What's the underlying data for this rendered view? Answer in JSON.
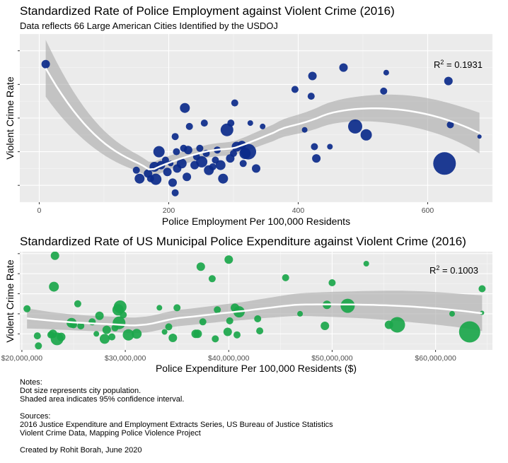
{
  "chart1": {
    "title": "Standardized Rate of Police Employment against Violent Crime (2016)",
    "subtitle": "Data reflects 66 Large American Cities Identified by the USDOJ",
    "xlabel": "Police Employment Per 100,000 Residents",
    "ylabel": "Violent Crime Rate",
    "r2_prefix": "R",
    "r2_exp": "2",
    "r2_value": " = 0.1931",
    "point_color": "#0b2a8a"
  },
  "chart2": {
    "title": "Standardized Rate of US Municipal Police Expenditure against Violent Crime (2016)",
    "xlabel": "Police Expenditure Per 100,000 Residents ($)",
    "ylabel": "Violent Crime Rate",
    "r2_prefix": "R",
    "r2_exp": "2",
    "r2_value": " = 0.1003",
    "point_color": "#1aa64a"
  },
  "notes": {
    "heading": "Notes:",
    "line1": "Dot size represents city population.",
    "line2": "Shaded area indicates 95% confidence interval.",
    "sources_heading": "Sources:",
    "source1": "2016 Justice Expenditure and Employment Extracts Series, US Bureau of Justice Statistics",
    "source2": "Violent Crime Data, Mapping Police Violence Project",
    "credit": "Created by Rohit Borah, June 2020"
  },
  "chart_data": [
    {
      "type": "scatter",
      "title": "Standardized Rate of Police Employment against Violent Crime (2016)",
      "subtitle": "Data reflects 66 Large American Cities Identified by the USDOJ",
      "xlabel": "Police Employment Per 100,000 Residents",
      "ylabel": "Violent Crime Rate",
      "xlim": [
        -30,
        700
      ],
      "ylim": [
        -2.0,
        3.0
      ],
      "xticks": [
        0,
        200,
        400,
        600
      ],
      "xtick_labels": [
        "0",
        "200",
        "400",
        "600"
      ],
      "yticks": [
        -1.5,
        -0.5,
        0.5,
        1.5,
        2.5
      ],
      "ytick_labels": [
        "",
        "",
        "",
        "",
        ""
      ],
      "grid": true,
      "annotation": "R2 = 0.1931",
      "points": [
        {
          "x": 10,
          "y": 2.1,
          "s": 6
        },
        {
          "x": 150,
          "y": -1.05,
          "s": 5
        },
        {
          "x": 155,
          "y": -1.3,
          "s": 7
        },
        {
          "x": 168,
          "y": -1.15,
          "s": 6
        },
        {
          "x": 172,
          "y": -1.3,
          "s": 5
        },
        {
          "x": 178,
          "y": -0.95,
          "s": 7
        },
        {
          "x": 180,
          "y": -1.32,
          "s": 8
        },
        {
          "x": 185,
          "y": -0.5,
          "s": 8
        },
        {
          "x": 188,
          "y": -0.9,
          "s": 6
        },
        {
          "x": 195,
          "y": -0.75,
          "s": 5
        },
        {
          "x": 198,
          "y": -1.1,
          "s": 6
        },
        {
          "x": 203,
          "y": -0.85,
          "s": 4
        },
        {
          "x": 206,
          "y": -1.42,
          "s": 6
        },
        {
          "x": 210,
          "y": -0.05,
          "s": 5
        },
        {
          "x": 210,
          "y": -1.72,
          "s": 5
        },
        {
          "x": 212,
          "y": -0.5,
          "s": 5
        },
        {
          "x": 213,
          "y": -1.0,
          "s": 6
        },
        {
          "x": 220,
          "y": -0.85,
          "s": 7
        },
        {
          "x": 223,
          "y": -0.4,
          "s": 5
        },
        {
          "x": 225,
          "y": 0.8,
          "s": 7
        },
        {
          "x": 228,
          "y": -1.25,
          "s": 6
        },
        {
          "x": 230,
          "y": -0.45,
          "s": 6
        },
        {
          "x": 232,
          "y": 0.25,
          "s": 5
        },
        {
          "x": 240,
          "y": -0.9,
          "s": 6
        },
        {
          "x": 243,
          "y": -0.65,
          "s": 5
        },
        {
          "x": 248,
          "y": -0.4,
          "s": 5
        },
        {
          "x": 251,
          "y": -0.8,
          "s": 8
        },
        {
          "x": 255,
          "y": 0.35,
          "s": 5
        },
        {
          "x": 258,
          "y": -0.55,
          "s": 5
        },
        {
          "x": 262,
          "y": -1.05,
          "s": 7
        },
        {
          "x": 268,
          "y": -0.95,
          "s": 5
        },
        {
          "x": 272,
          "y": -0.75,
          "s": 5
        },
        {
          "x": 275,
          "y": -0.45,
          "s": 5
        },
        {
          "x": 280,
          "y": -0.9,
          "s": 7
        },
        {
          "x": 284,
          "y": -1.3,
          "s": 7
        },
        {
          "x": 290,
          "y": 0.15,
          "s": 9
        },
        {
          "x": 295,
          "y": -0.7,
          "s": 6
        },
        {
          "x": 296,
          "y": 0.35,
          "s": 5
        },
        {
          "x": 300,
          "y": -0.55,
          "s": 5
        },
        {
          "x": 302,
          "y": 0.95,
          "s": 5
        },
        {
          "x": 305,
          "y": -0.35,
          "s": 7
        },
        {
          "x": 313,
          "y": -0.3,
          "s": 6
        },
        {
          "x": 315,
          "y": -0.85,
          "s": 5
        },
        {
          "x": 318,
          "y": -0.55,
          "s": 8
        },
        {
          "x": 323,
          "y": -0.5,
          "s": 11
        },
        {
          "x": 326,
          "y": 0.35,
          "s": 4
        },
        {
          "x": 335,
          "y": -1.0,
          "s": 6
        },
        {
          "x": 345,
          "y": 0.25,
          "s": 4
        },
        {
          "x": 395,
          "y": 1.35,
          "s": 5
        },
        {
          "x": 410,
          "y": 0.15,
          "s": 4
        },
        {
          "x": 420,
          "y": 1.15,
          "s": 5
        },
        {
          "x": 422,
          "y": 1.75,
          "s": 6
        },
        {
          "x": 425,
          "y": -0.35,
          "s": 5
        },
        {
          "x": 428,
          "y": -0.7,
          "s": 6
        },
        {
          "x": 449,
          "y": -0.35,
          "s": 4
        },
        {
          "x": 470,
          "y": 2.0,
          "s": 6
        },
        {
          "x": 488,
          "y": 0.25,
          "s": 10
        },
        {
          "x": 505,
          "y": 0.0,
          "s": 8
        },
        {
          "x": 532,
          "y": 1.3,
          "s": 5
        },
        {
          "x": 536,
          "y": 1.85,
          "s": 4
        },
        {
          "x": 626,
          "y": -0.85,
          "s": 16
        },
        {
          "x": 632,
          "y": 1.6,
          "s": 6
        },
        {
          "x": 635,
          "y": 0.3,
          "s": 5
        },
        {
          "x": 680,
          "y": -0.05,
          "s": 3
        }
      ]
    },
    {
      "type": "scatter",
      "title": "Standardized Rate of US Municipal Police Expenditure against Violent Crime (2016)",
      "xlabel": "Police Expenditure Per 100,000 Residents ($)",
      "ylabel": "Violent Crime Rate",
      "xlim": [
        19800000,
        65500000
      ],
      "ylim": [
        -2.3,
        2.6
      ],
      "xticks": [
        20000000,
        30000000,
        40000000,
        50000000,
        60000000
      ],
      "xtick_labels": [
        "$20,000,000",
        "$30,000,000",
        "$40,000,000",
        "$50,000,000",
        "$60,000,000"
      ],
      "yticks": [
        -1.5,
        -0.5,
        0.5,
        1.5,
        2.5
      ],
      "ytick_labels": [
        "",
        "",
        "",
        "",
        ""
      ],
      "grid": true,
      "annotation": "R2 = 0.1003",
      "points": [
        {
          "x": 20500000,
          "y": -0.25,
          "s": 5
        },
        {
          "x": 21500000,
          "y": -1.6,
          "s": 5
        },
        {
          "x": 21600000,
          "y": -2.1,
          "s": 5
        },
        {
          "x": 22800000,
          "y": -1.55,
          "s": 5
        },
        {
          "x": 23000000,
          "y": -1.5,
          "s": 6
        },
        {
          "x": 23100000,
          "y": 0.85,
          "s": 7
        },
        {
          "x": 23200000,
          "y": 2.4,
          "s": 6
        },
        {
          "x": 23400000,
          "y": -1.75,
          "s": 9
        },
        {
          "x": 23800000,
          "y": -1.65,
          "s": 6
        },
        {
          "x": 24800000,
          "y": -0.95,
          "s": 7
        },
        {
          "x": 25000000,
          "y": -1.05,
          "s": 5
        },
        {
          "x": 25400000,
          "y": 0.0,
          "s": 5
        },
        {
          "x": 25700000,
          "y": -1.1,
          "s": 5
        },
        {
          "x": 26800000,
          "y": -0.9,
          "s": 5
        },
        {
          "x": 27200000,
          "y": -1.5,
          "s": 4
        },
        {
          "x": 27500000,
          "y": -0.6,
          "s": 6
        },
        {
          "x": 28000000,
          "y": -1.75,
          "s": 7
        },
        {
          "x": 28200000,
          "y": -1.3,
          "s": 6
        },
        {
          "x": 28700000,
          "y": -1.65,
          "s": 5
        },
        {
          "x": 29000000,
          "y": -1.2,
          "s": 5
        },
        {
          "x": 29300000,
          "y": -0.3,
          "s": 8
        },
        {
          "x": 29400000,
          "y": -0.95,
          "s": 9
        },
        {
          "x": 29500000,
          "y": -0.15,
          "s": 9
        },
        {
          "x": 29800000,
          "y": -0.55,
          "s": 5
        },
        {
          "x": 30300000,
          "y": -1.55,
          "s": 8
        },
        {
          "x": 31100000,
          "y": -1.5,
          "s": 7
        },
        {
          "x": 33300000,
          "y": -0.2,
          "s": 4
        },
        {
          "x": 33800000,
          "y": -1.4,
          "s": 4
        },
        {
          "x": 34200000,
          "y": -1.15,
          "s": 5
        },
        {
          "x": 34600000,
          "y": -1.7,
          "s": 6
        },
        {
          "x": 35000000,
          "y": -0.2,
          "s": 5
        },
        {
          "x": 36800000,
          "y": -1.5,
          "s": 6
        },
        {
          "x": 37000000,
          "y": -1.5,
          "s": 6
        },
        {
          "x": 37300000,
          "y": 1.85,
          "s": 6
        },
        {
          "x": 37500000,
          "y": -0.9,
          "s": 5
        },
        {
          "x": 38400000,
          "y": 1.25,
          "s": 5
        },
        {
          "x": 38700000,
          "y": -1.75,
          "s": 5
        },
        {
          "x": 38900000,
          "y": -0.3,
          "s": 5
        },
        {
          "x": 39900000,
          "y": -1.4,
          "s": 6
        },
        {
          "x": 40000000,
          "y": 2.2,
          "s": 6
        },
        {
          "x": 40100000,
          "y": -0.85,
          "s": 5
        },
        {
          "x": 40600000,
          "y": -0.2,
          "s": 6
        },
        {
          "x": 40800000,
          "y": -1.55,
          "s": 5
        },
        {
          "x": 41000000,
          "y": -0.4,
          "s": 8
        },
        {
          "x": 42800000,
          "y": -0.75,
          "s": 5
        },
        {
          "x": 43000000,
          "y": -1.35,
          "s": 5
        },
        {
          "x": 45500000,
          "y": 1.3,
          "s": 5
        },
        {
          "x": 46900000,
          "y": -0.5,
          "s": 4
        },
        {
          "x": 49300000,
          "y": -1.1,
          "s": 6
        },
        {
          "x": 49500000,
          "y": -0.05,
          "s": 6
        },
        {
          "x": 50000000,
          "y": 1.05,
          "s": 5
        },
        {
          "x": 51500000,
          "y": -0.1,
          "s": 10
        },
        {
          "x": 53300000,
          "y": 2.0,
          "s": 4
        },
        {
          "x": 55500000,
          "y": -1.05,
          "s": 6
        },
        {
          "x": 56300000,
          "y": -1.05,
          "s": 11
        },
        {
          "x": 61600000,
          "y": -0.5,
          "s": 4
        },
        {
          "x": 63300000,
          "y": -1.4,
          "s": 15
        },
        {
          "x": 64500000,
          "y": 0.75,
          "s": 5
        },
        {
          "x": 64500000,
          "y": -0.45,
          "s": 3
        }
      ]
    }
  ]
}
